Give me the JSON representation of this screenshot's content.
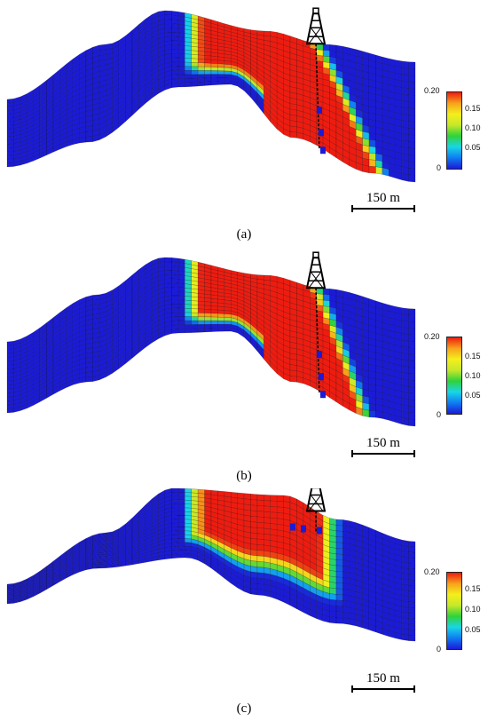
{
  "colors": {
    "low": "#1b1bd6",
    "high": "#ee1c10",
    "gradient": [
      "#1b1bd6",
      "#0f7cf2",
      "#19d6e6",
      "#30d23a",
      "#c6e82a",
      "#f4ef1c",
      "#f7a21b",
      "#ee1c10"
    ]
  },
  "icons": {
    "well": "drilling-rig-icon"
  },
  "panels": [
    {
      "caption": "(a)",
      "scale_label": "150 m",
      "colorbar": {
        "ticks": [
          "0.20",
          "0.15",
          "0.10",
          "0.05",
          "0"
        ]
      }
    },
    {
      "caption": "(b)",
      "scale_label": "150 m",
      "colorbar": {
        "ticks": [
          "0.20",
          "0.15",
          "0.10",
          "0.05",
          "0"
        ]
      }
    },
    {
      "caption": "(c)",
      "scale_label": "150 m",
      "colorbar": {
        "ticks": [
          "0.20",
          "0.15",
          "0.10",
          "0.05",
          "0"
        ]
      }
    }
  ]
}
